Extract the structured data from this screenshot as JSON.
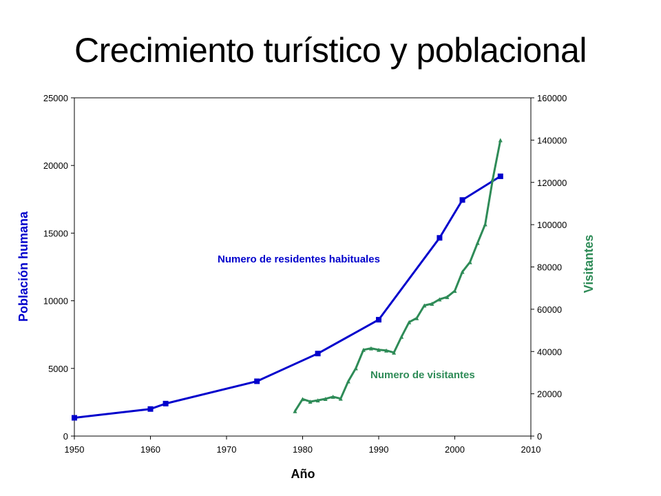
{
  "slide": {
    "title": "Crecimiento turístico y poblacional"
  },
  "chart_data": {
    "type": "line",
    "xlabel": "Año",
    "ylabel_left": "Población humana",
    "ylabel_right": "Visitantes",
    "xlim": [
      1950,
      2010
    ],
    "ylim_left": [
      0,
      25000
    ],
    "ylim_right": [
      0,
      160000
    ],
    "x_ticks": [
      1950,
      1960,
      1970,
      1980,
      1990,
      2000,
      2010
    ],
    "y_ticks_left": [
      0,
      5000,
      10000,
      15000,
      20000,
      25000
    ],
    "y_ticks_right": [
      0,
      20000,
      40000,
      60000,
      80000,
      100000,
      120000,
      140000,
      160000
    ],
    "grid": false,
    "legend": "none",
    "series": [
      {
        "name": "Numero de residentes habituales",
        "axis": "left",
        "color": "#0000CC",
        "marker": "square",
        "x": [
          1950,
          1960,
          1962,
          1974,
          1982,
          1990,
          1998,
          2001,
          2006
        ],
        "y": [
          1350,
          2000,
          2400,
          4050,
          6100,
          8600,
          14650,
          17450,
          19200
        ]
      },
      {
        "name": "Numero de visitantes",
        "axis": "right",
        "color": "#2E8B57",
        "marker": "triangle",
        "x": [
          1979,
          1980,
          1981,
          1982,
          1983,
          1984,
          1985,
          1986,
          1987,
          1988,
          1989,
          1990,
          1991,
          1992,
          1993,
          1994,
          1995,
          1996,
          1997,
          1998,
          1999,
          2000,
          2001,
          2002,
          2003,
          2004,
          2005,
          2006
        ],
        "y": [
          11800,
          17500,
          16300,
          16900,
          17600,
          18600,
          17700,
          25900,
          32100,
          40800,
          41500,
          40800,
          40500,
          39500,
          47000,
          53900,
          55800,
          61800,
          62600,
          64700,
          65800,
          68700,
          77700,
          82300,
          91400,
          100200,
          121700,
          140000
        ]
      }
    ],
    "annotations": [
      {
        "text": "Numero de residentes habituales",
        "series": 0
      },
      {
        "text": "Numero de visitantes",
        "series": 1
      }
    ]
  }
}
